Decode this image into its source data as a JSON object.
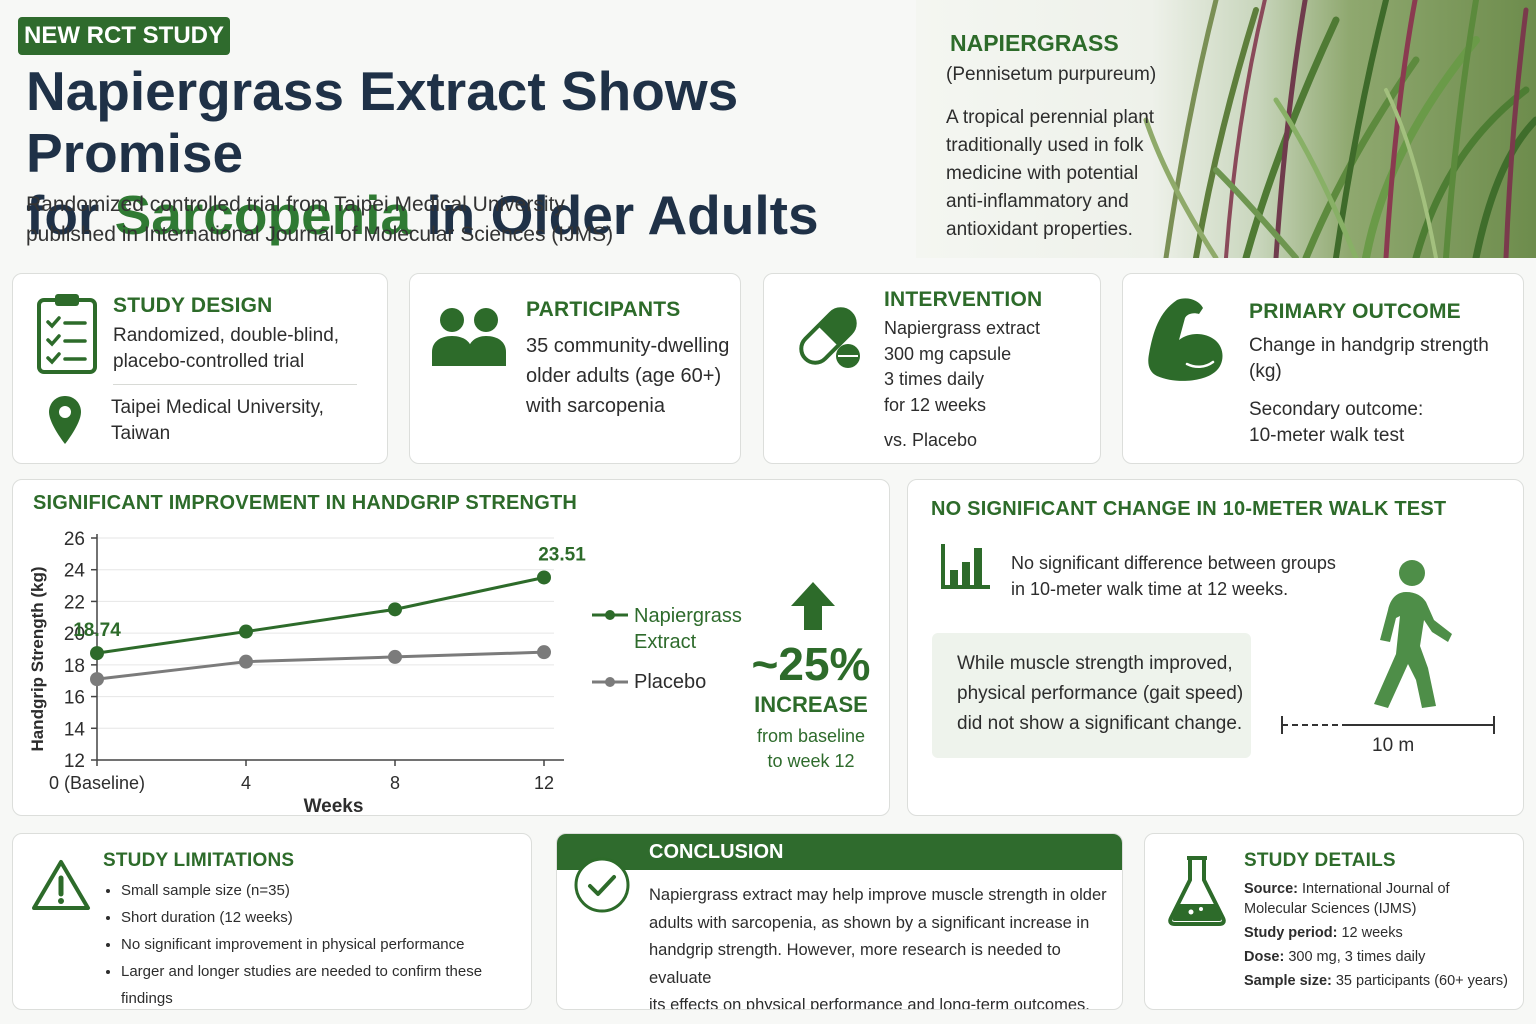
{
  "header": {
    "badge": "NEW RCT STUDY",
    "title_part1": "Napiergrass Extract Shows Promise",
    "title_part2_prefix": "for ",
    "title_highlight": "Sarcopenia",
    "title_part2_suffix": " in Older Adults",
    "subtitle_line1": "Randomized controlled trial from Taipei Medical University",
    "subtitle_line2": "published in International Journal of Molecular Sciences (IJMS)"
  },
  "plant": {
    "name": "NAPIERGRASS",
    "scientific": "(Pennisetum purpureum)",
    "description_lines": [
      "A tropical perennial plant",
      "traditionally used in folk",
      "medicine with potential",
      "anti-inflammatory and",
      "antioxidant properties."
    ]
  },
  "study_design": {
    "title": "STUDY DESIGN",
    "lines": [
      "Randomized, double-blind,",
      "placebo-controlled trial"
    ],
    "location_lines": [
      "Taipei Medical University,",
      "Taiwan"
    ]
  },
  "participants": {
    "title": "PARTICIPANTS",
    "lines": [
      "35 community-dwelling",
      "older adults (age 60+)",
      "with sarcopenia"
    ]
  },
  "intervention": {
    "title": "INTERVENTION",
    "lines": [
      "Napiergrass extract",
      "300 mg capsule",
      "3 times daily",
      "for 12 weeks"
    ],
    "comparator": "vs. Placebo"
  },
  "primary_outcome": {
    "title": "PRIMARY OUTCOME",
    "lines": [
      "Change in handgrip strength",
      "(kg)"
    ],
    "secondary_lines": [
      "Secondary outcome:",
      "10-meter walk test"
    ]
  },
  "chart_data": {
    "type": "line",
    "title": "SIGNIFICANT IMPROVEMENT IN HANDGRIP STRENGTH",
    "xlabel": "Weeks",
    "ylabel": "Handgrip Strength (kg)",
    "x": [
      0,
      4,
      8,
      12
    ],
    "x_tick_labels": [
      "0 (Baseline)",
      "4",
      "8",
      "12"
    ],
    "ylim": [
      12,
      26
    ],
    "y_ticks": [
      12,
      14,
      16,
      18,
      20,
      22,
      24,
      26
    ],
    "grid": "horizontal",
    "legend_position": "right",
    "series": [
      {
        "name": "Napiergrass Extract",
        "legend_lines": [
          "Napiergrass",
          "Extract"
        ],
        "color": "#2d6b2a",
        "values": [
          18.74,
          20.1,
          21.5,
          23.51
        ]
      },
      {
        "name": "Placebo",
        "legend_lines": [
          "Placebo"
        ],
        "color": "#7b7b7b",
        "values": [
          17.1,
          18.2,
          18.5,
          18.8
        ]
      }
    ],
    "annotations": [
      {
        "text": "18.74",
        "series": "Napiergrass Extract",
        "x": 0
      },
      {
        "text": "23.51",
        "series": "Napiergrass Extract",
        "x": 12
      }
    ]
  },
  "increase": {
    "value": "~25%",
    "label": "INCREASE",
    "sub_lines": [
      "from baseline",
      "to week 12"
    ]
  },
  "walk_test": {
    "title": "NO SIGNIFICANT CHANGE IN 10-METER WALK TEST",
    "lines": [
      "No significant difference between groups",
      "in 10-meter walk time at 12 weeks."
    ],
    "box_lines": [
      "While muscle strength improved,",
      "physical performance (gait speed)",
      "did not show a significant change."
    ],
    "distance_label": "10 m"
  },
  "limitations": {
    "title": "STUDY LIMITATIONS",
    "items": [
      "Small sample size (n=35)",
      "Short duration (12 weeks)",
      "No significant improvement in physical performance",
      "Larger and longer studies are needed to confirm these findings"
    ]
  },
  "conclusion": {
    "title": "CONCLUSION",
    "lines": [
      "Napiergrass extract may help improve muscle strength in older",
      "adults with sarcopenia, as shown by a significant increase in",
      "handgrip strength. However, more research is needed to evaluate",
      "its effects on physical performance and long-term outcomes."
    ]
  },
  "details": {
    "title": "STUDY DETAILS",
    "source_label": "Source:",
    "source_value_lines": [
      " International Journal of",
      "Molecular Sciences (IJMS)"
    ],
    "period_label": "Study period:",
    "period_value": " 12 weeks",
    "dose_label": "Dose:",
    "dose_value": " 300 mg, 3 times daily",
    "sample_label": "Sample size:",
    "sample_value": " 35 participants (60+ years)"
  },
  "icons": [
    "clipboard-checklist-icon",
    "location-pin-icon",
    "people-icon",
    "capsule-icon",
    "flexed-arm-icon",
    "bar-chart-icon",
    "walking-person-icon",
    "warning-icon",
    "checkmark-circle-icon",
    "flask-icon",
    "arrow-up-icon"
  ]
}
